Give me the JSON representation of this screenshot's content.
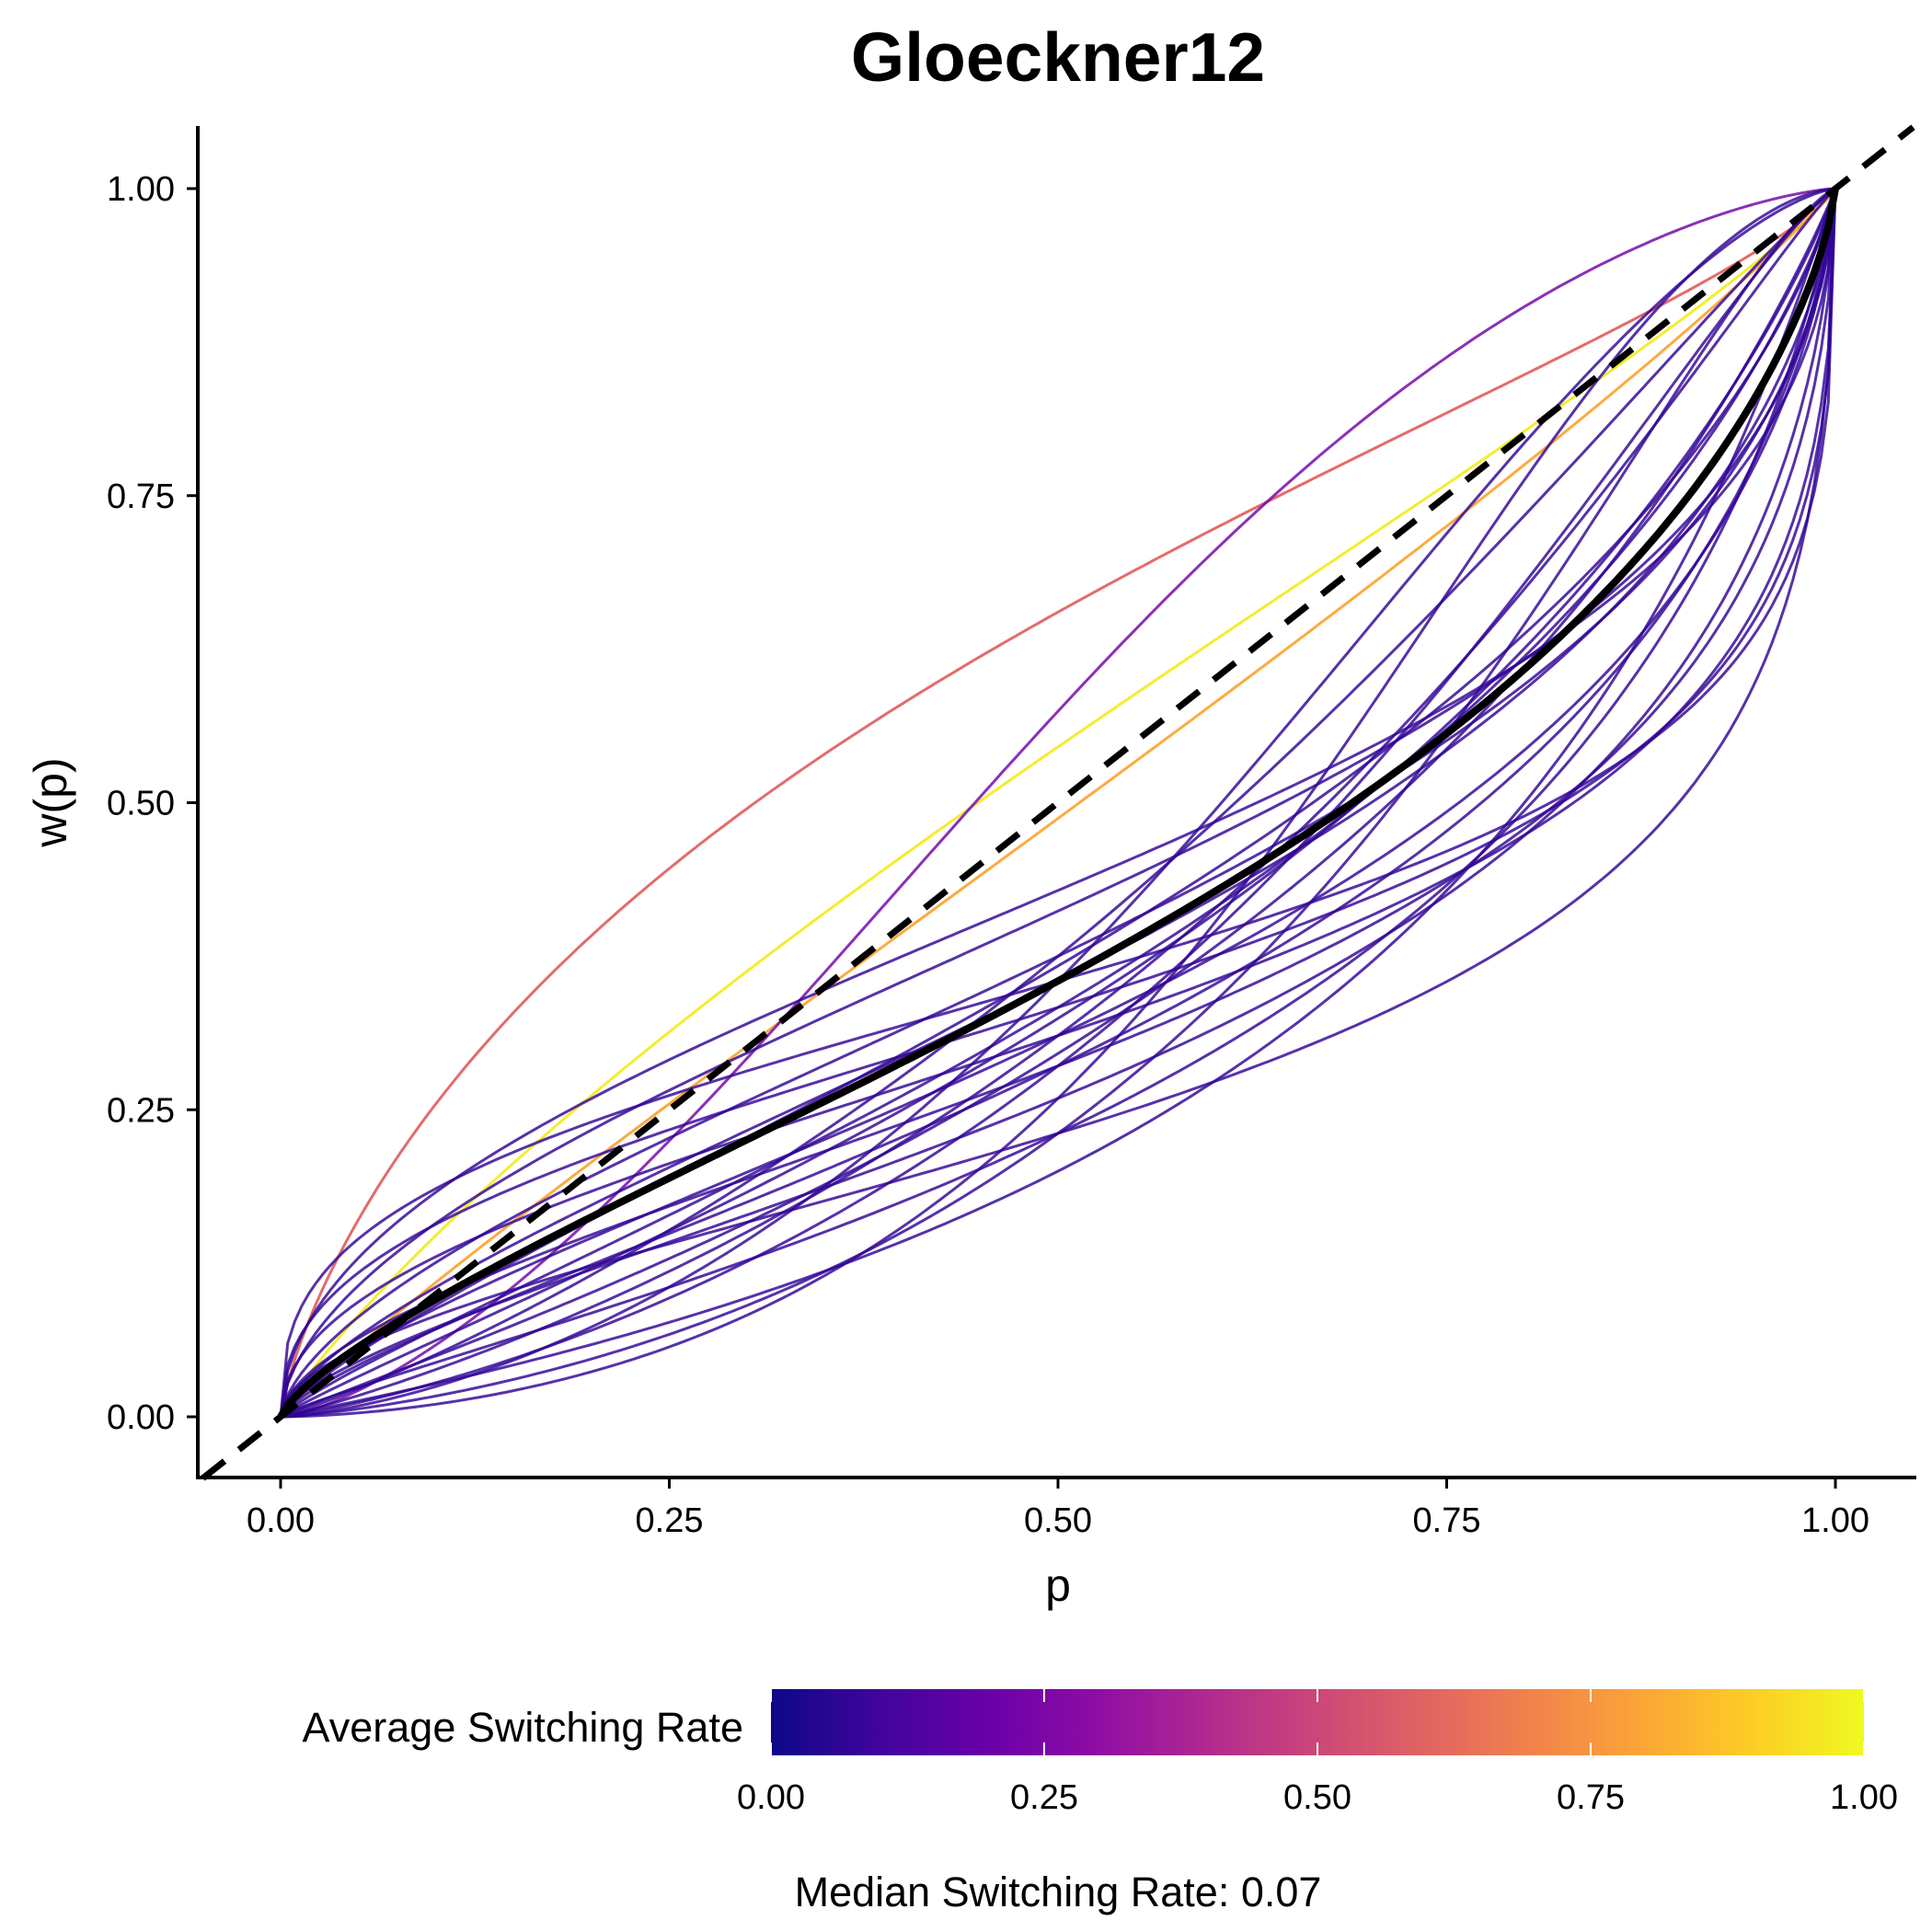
{
  "chart_data": {
    "type": "line",
    "title": "Gloeckner12",
    "xlabel": "p",
    "ylabel": "w(p)",
    "xlim": [
      -0.05,
      1.05
    ],
    "ylim": [
      -0.05,
      1.05
    ],
    "x_ticks": [
      "0.00",
      "0.25",
      "0.50",
      "0.75",
      "1.00"
    ],
    "y_ticks": [
      "0.00",
      "0.25",
      "0.50",
      "0.75",
      "1.00"
    ],
    "grid": false,
    "legend": {
      "position": "bottom",
      "title": "Average Switching Rate",
      "type": "colorbar",
      "palette": "plasma",
      "range": [
        0,
        1
      ],
      "ticks": [
        "0.00",
        "0.25",
        "0.50",
        "0.75",
        "1.00"
      ]
    },
    "caption": "Median Switching Rate: 0.07",
    "reference_line": {
      "style": "dashed",
      "color": "#000000",
      "from": [
        -0.05,
        -0.05
      ],
      "to": [
        1.05,
        1.05
      ]
    },
    "median_curve": {
      "color": "#000000",
      "gamma": 0.75,
      "delta": 0.55
    },
    "series": [
      {
        "rate": 0.6,
        "gamma": 0.78,
        "delta": 1.9
      },
      {
        "rate": 0.97,
        "gamma": 0.88,
        "delta": 1.2
      },
      {
        "rate": 0.8,
        "gamma": 0.93,
        "delta": 0.95
      },
      {
        "rate": 0.22,
        "gamma": 1.4,
        "delta": 1.35
      },
      {
        "rate": 0.07,
        "gamma": 0.55,
        "delta": 0.75
      },
      {
        "rate": 0.07,
        "gamma": 0.6,
        "delta": 0.7
      },
      {
        "rate": 0.07,
        "gamma": 0.65,
        "delta": 0.6
      },
      {
        "rate": 0.07,
        "gamma": 0.7,
        "delta": 0.55
      },
      {
        "rate": 0.07,
        "gamma": 0.8,
        "delta": 0.58
      },
      {
        "rate": 0.07,
        "gamma": 0.85,
        "delta": 0.5
      },
      {
        "rate": 0.07,
        "gamma": 0.9,
        "delta": 0.48
      },
      {
        "rate": 0.07,
        "gamma": 0.45,
        "delta": 0.5
      },
      {
        "rate": 0.07,
        "gamma": 0.5,
        "delta": 0.45
      },
      {
        "rate": 0.07,
        "gamma": 0.6,
        "delta": 0.4
      },
      {
        "rate": 0.07,
        "gamma": 0.75,
        "delta": 0.4
      },
      {
        "rate": 0.07,
        "gamma": 0.95,
        "delta": 0.42
      },
      {
        "rate": 0.07,
        "gamma": 1.1,
        "delta": 0.45
      },
      {
        "rate": 0.07,
        "gamma": 1.2,
        "delta": 0.4
      },
      {
        "rate": 0.07,
        "gamma": 1.3,
        "delta": 0.3
      },
      {
        "rate": 0.07,
        "gamma": 1.1,
        "delta": 0.6
      },
      {
        "rate": 0.07,
        "gamma": 0.4,
        "delta": 0.55
      },
      {
        "rate": 0.07,
        "gamma": 0.55,
        "delta": 0.3
      },
      {
        "rate": 0.07,
        "gamma": 0.68,
        "delta": 0.35
      },
      {
        "rate": 0.07,
        "gamma": 0.85,
        "delta": 0.3
      },
      {
        "rate": 0.07,
        "gamma": 1.0,
        "delta": 0.25
      },
      {
        "rate": 0.07,
        "gamma": 1.4,
        "delta": 0.55
      },
      {
        "rate": 0.07,
        "gamma": 1.6,
        "delta": 0.35
      },
      {
        "rate": 0.07,
        "gamma": 0.7,
        "delta": 0.45
      }
    ]
  }
}
